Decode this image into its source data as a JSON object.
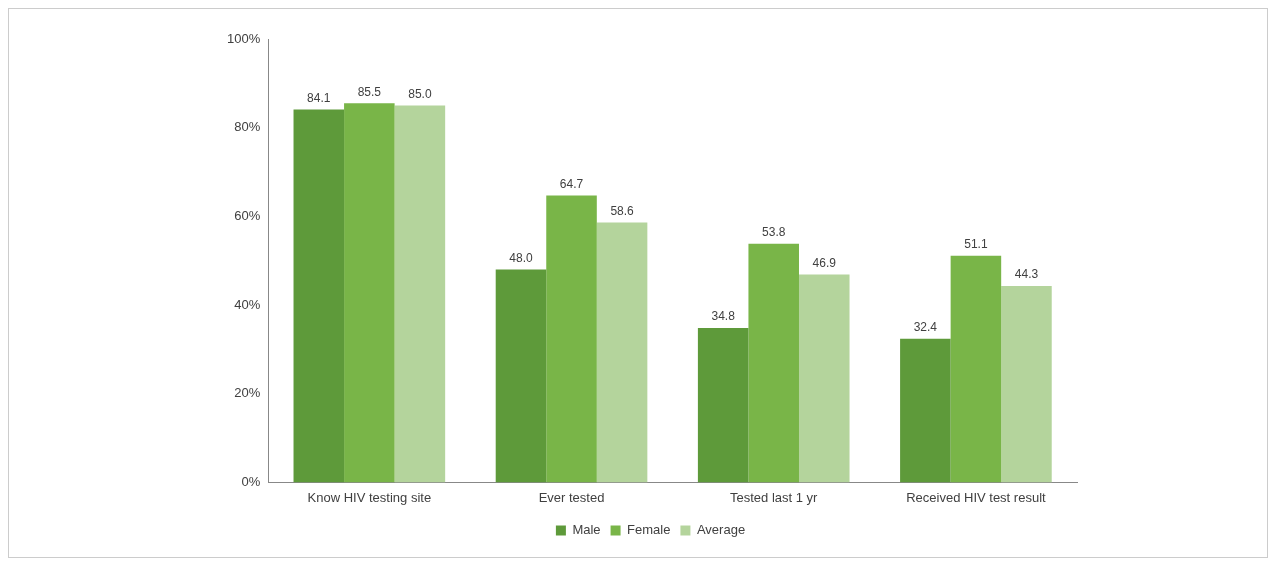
{
  "chart_data": {
    "type": "bar",
    "categories": [
      "Know HIV testing site",
      "Ever tested",
      "Tested last 1 yr",
      "Received HIV test result"
    ],
    "series": [
      {
        "name": "Male",
        "color": "#5e9a3a",
        "values": [
          84.1,
          48.0,
          34.8,
          32.4
        ],
        "value_labels": [
          "84.1",
          "48.0",
          "34.8",
          "32.4"
        ]
      },
      {
        "name": "Female",
        "color": "#79b548",
        "values": [
          85.5,
          64.7,
          53.8,
          51.1
        ],
        "value_labels": [
          "85.5",
          "64.7",
          "53.8",
          "51.1"
        ]
      },
      {
        "name": "Average",
        "color": "#b4d49c",
        "values": [
          85.0,
          58.6,
          46.9,
          44.3
        ],
        "value_labels": [
          "85.0",
          "58.6",
          "46.9",
          "44.3"
        ]
      }
    ],
    "ylim": [
      0,
      100
    ],
    "yticks": [
      {
        "value": 0,
        "label": "0%"
      },
      {
        "value": 20,
        "label": "20%"
      },
      {
        "value": 40,
        "label": "40%"
      },
      {
        "value": 60,
        "label": "60%"
      },
      {
        "value": 80,
        "label": "80%"
      },
      {
        "value": 100,
        "label": "100%"
      }
    ],
    "grid": false,
    "legend": "bottom"
  }
}
